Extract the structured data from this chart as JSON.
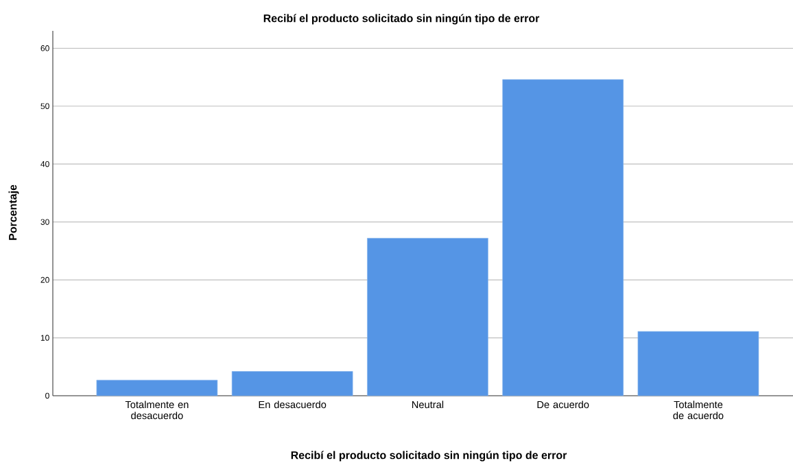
{
  "chart_data": {
    "type": "bar",
    "title": "Recibí el producto solicitado sin ningún tipo de error",
    "xlabel": "Recibí el producto solicitado sin ningún tipo de error",
    "ylabel": "Porcentaje",
    "categories": [
      "Totalmente en desacuerdo",
      "En desacuerdo",
      "Neutral",
      "De acuerdo",
      "Totalmente de acuerdo"
    ],
    "values": [
      2.7,
      4.2,
      27.2,
      54.6,
      11.1
    ],
    "color": "#5595e5",
    "ylim": [
      0,
      63
    ],
    "yticks": [
      0,
      10,
      20,
      30,
      40,
      50,
      60
    ],
    "grid": "y"
  }
}
